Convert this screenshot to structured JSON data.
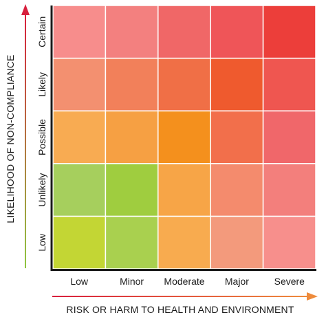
{
  "chart_data": {
    "type": "heatmap",
    "title": "",
    "xlabel": "RISK OR HARM TO HEALTH AND ENVIRONMENT",
    "ylabel": "LIKELIHOOD OF NON-COMPLIANCE",
    "x_categories": [
      "Low",
      "Minor",
      "Moderate",
      "Major",
      "Severe"
    ],
    "y_categories": [
      "Low",
      "Unlikely",
      "Possible",
      "Likely",
      "Certain"
    ],
    "cell_colors": [
      [
        "#c3d634",
        "#a9d04f",
        "#f8ab4f",
        "#f39a7c",
        "#f78f8c"
      ],
      [
        "#a6cf5d",
        "#9fcd3f",
        "#f7a547",
        "#f48b6d",
        "#f37f7c"
      ],
      [
        "#f8ab52",
        "#f6a043",
        "#f4901d",
        "#f26f4b",
        "#f0676a"
      ],
      [
        "#f39070",
        "#f2805a",
        "#f06f46",
        "#ef5a2e",
        "#ef5650"
      ],
      [
        "#f78d8c",
        "#f3807f",
        "#f06767",
        "#ef5558",
        "#ec3e3a"
      ]
    ],
    "x_arrow_colors": [
      "#d81f3d",
      "#ee8b3c"
    ],
    "y_arrow_colors": [
      "#8ec63f",
      "#d81f3d"
    ]
  }
}
